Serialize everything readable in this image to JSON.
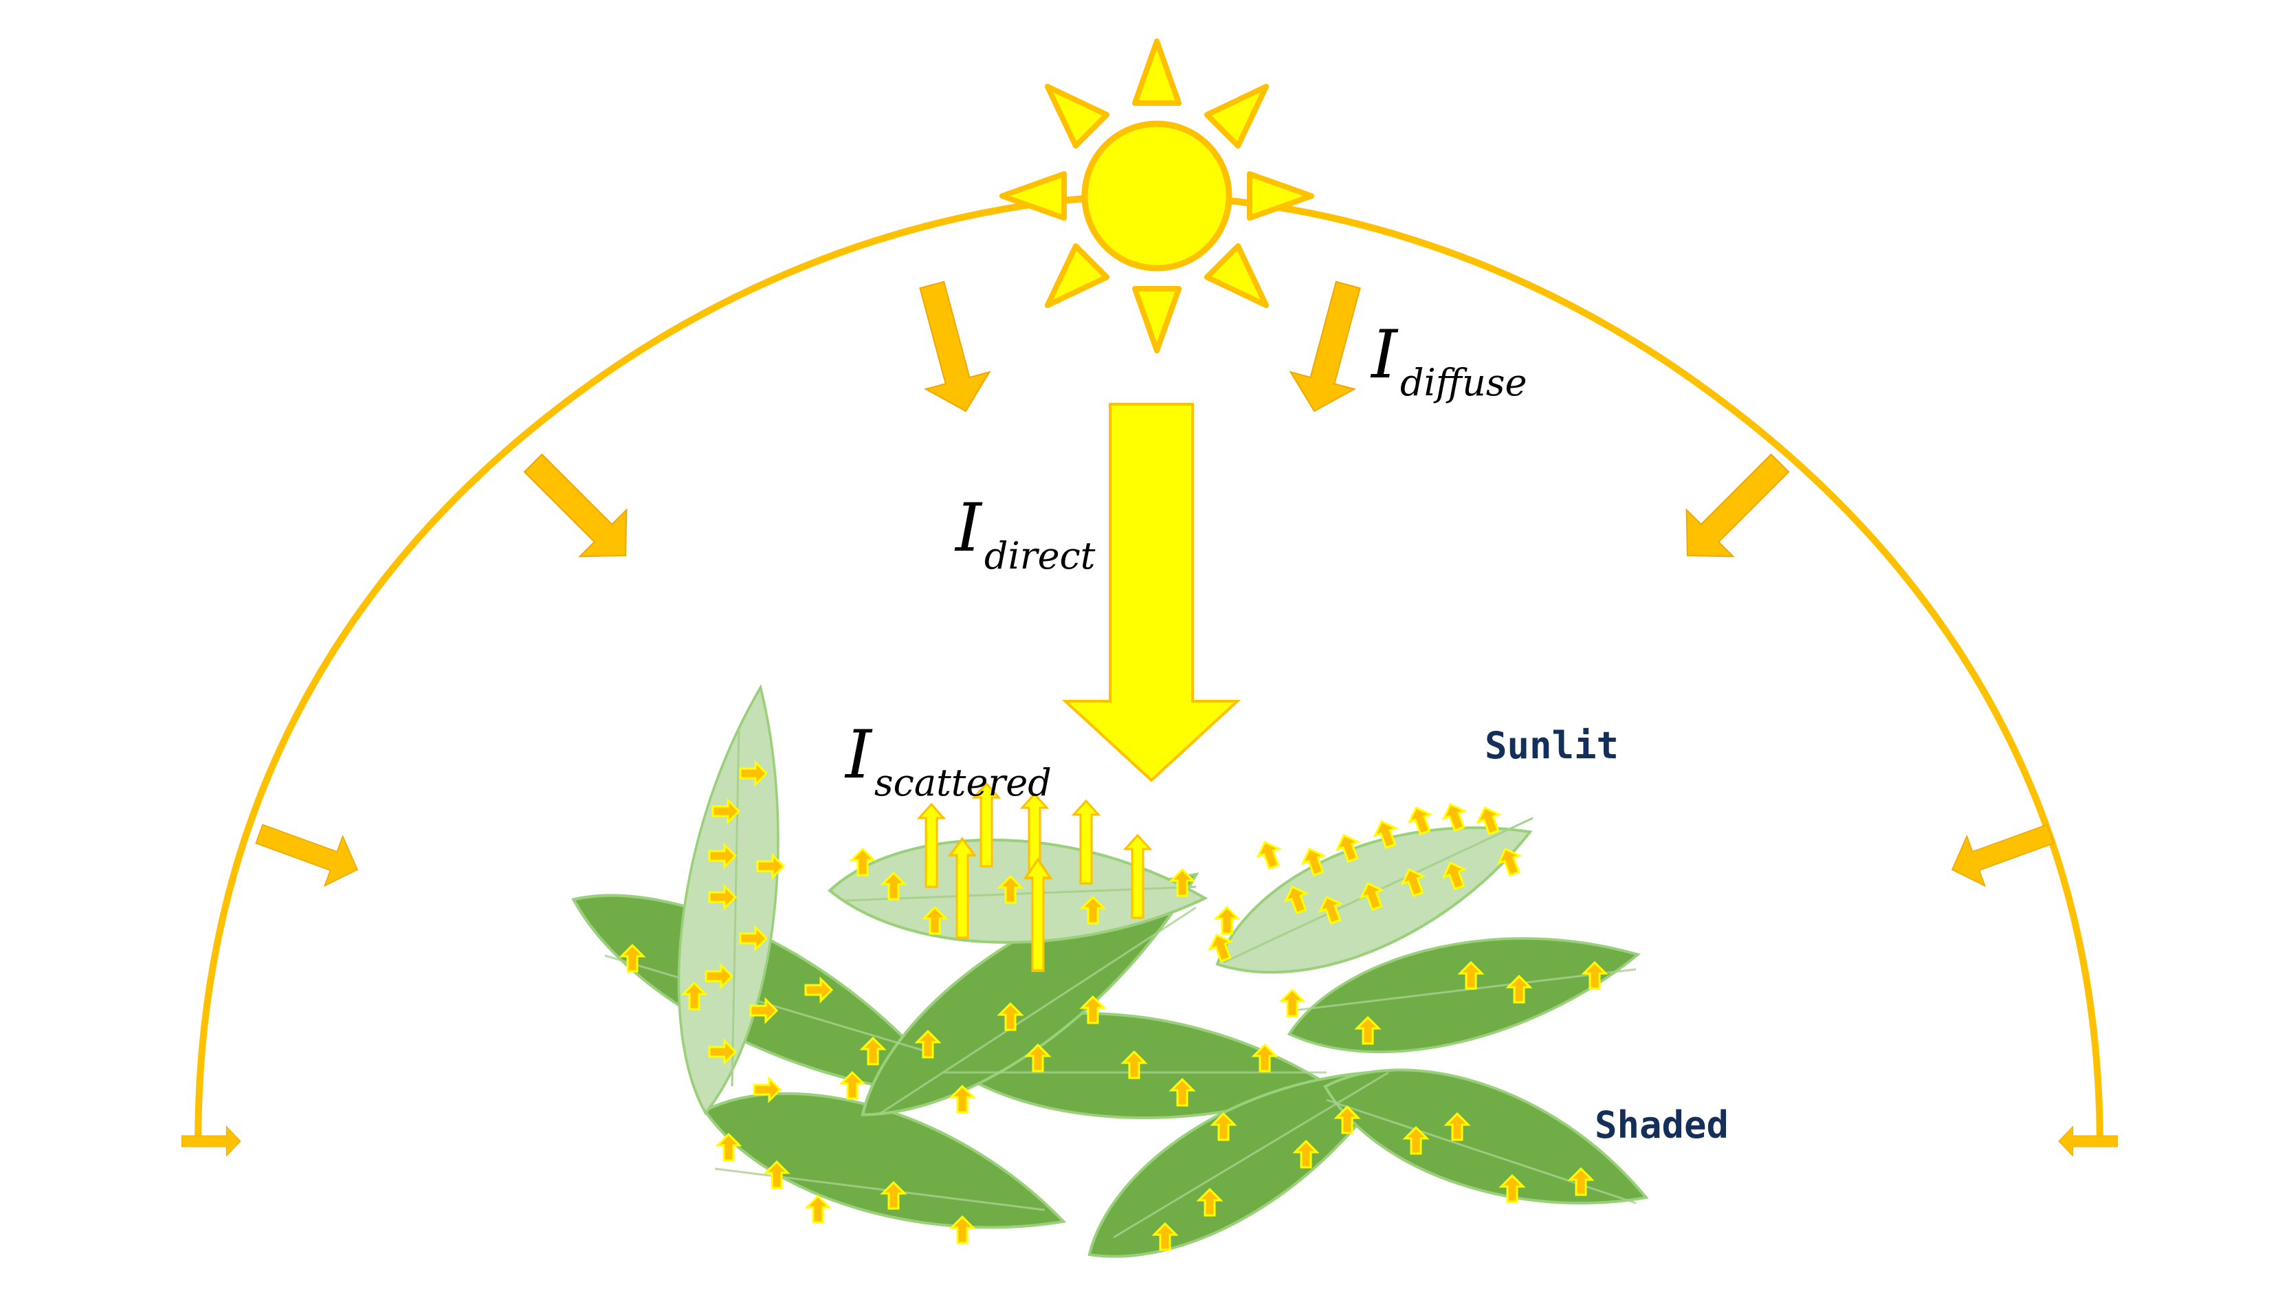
{
  "labels": {
    "diffuse": {
      "main": "I",
      "sub": "diffuse"
    },
    "direct": {
      "main": "I",
      "sub": "direct"
    },
    "scattered": {
      "main": "I",
      "sub": "scattered"
    },
    "sunlit": "Sunlit",
    "shaded": "Shaded"
  },
  "colors": {
    "sun_fill": "#ffff00",
    "sun_stroke": "#ffc000",
    "arrow_orange": "#ffc000",
    "direct_arrow": "#ffff00",
    "leaf_shaded": "#70ad47",
    "leaf_sunlit": "#c5e0b4",
    "label_text": "#14305a"
  },
  "icons": {
    "sun": "sun-icon",
    "diffuse_arrow": "arrow-icon",
    "direct_arrow": "large-arrow-icon",
    "leaf": "leaf-icon"
  }
}
